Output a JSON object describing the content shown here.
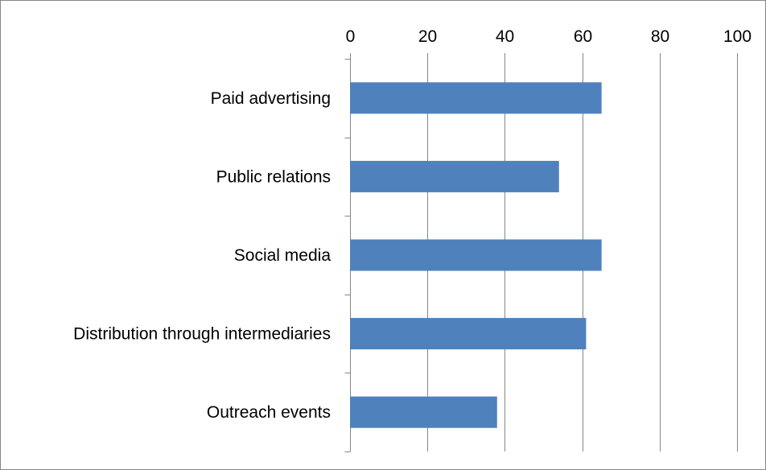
{
  "colors": {
    "bar": "#4F81BD",
    "gridline": "#868686",
    "axis": "#868686",
    "frame": "#868686",
    "background": "#FFFFFF"
  },
  "chart_data": {
    "type": "bar",
    "orientation": "horizontal",
    "title": "",
    "xlabel": "",
    "ylabel": "",
    "categories": [
      "Paid advertising",
      "Public relations",
      "Social media",
      "Distribution through intermediaries",
      "Outreach events"
    ],
    "values": [
      65,
      54,
      65,
      61,
      38
    ],
    "xlim": [
      0,
      100
    ],
    "x_ticks": [
      0,
      20,
      40,
      60,
      80,
      100
    ],
    "x_axis_position": "top",
    "grid": "vertical major gridlines",
    "legend": "none"
  }
}
